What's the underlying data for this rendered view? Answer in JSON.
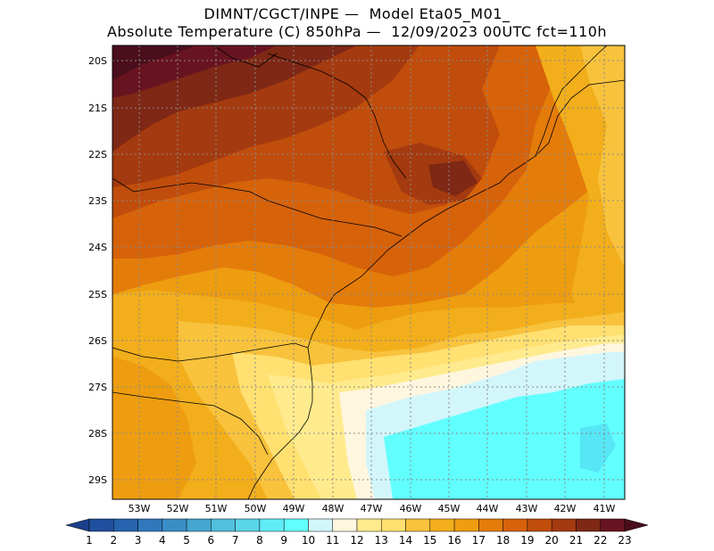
{
  "title_line1": "DIMNT/CGCT/INPE —  Model Eta05_M01_",
  "title_line2": "Absolute Temperature (C) 850hPa —  12/09/2023 00UTC fct=110h",
  "map": {
    "lat_labels": [
      "20S",
      "21S",
      "22S",
      "23S",
      "24S",
      "25S",
      "26S",
      "27S",
      "28S",
      "29S"
    ],
    "lon_labels": [
      "53W",
      "52W",
      "51W",
      "50W",
      "49W",
      "48W",
      "47W",
      "46W",
      "45W",
      "44W",
      "43W",
      "42W",
      "41W"
    ]
  },
  "colorbar": {
    "labels": [
      "1",
      "2",
      "3",
      "4",
      "5",
      "6",
      "7",
      "8",
      "9",
      "10",
      "11",
      "12",
      "13",
      "14",
      "15",
      "16",
      "17",
      "18",
      "19",
      "20",
      "21",
      "22",
      "23"
    ],
    "colors": [
      "#1c3f8c",
      "#1f4f9e",
      "#2662ad",
      "#2f78bb",
      "#3a8ec6",
      "#45a6d1",
      "#50c0dc",
      "#5ad6e8",
      "#60ecf7",
      "#62ffff",
      "#d3f6fb",
      "#fff6df",
      "#ffeb8e",
      "#ffe070",
      "#f8c23c",
      "#f2ae1b",
      "#ee9d10",
      "#e47c0a",
      "#d6620a",
      "#c04d0c",
      "#a43a0f",
      "#7e2815",
      "#681420",
      "#4a0e1c"
    ]
  },
  "colors": {
    "c12": "#fff6df",
    "c11": "#d3f6fb",
    "c10": "#62ffff",
    "c9": "#56f0ff",
    "c13": "#ffeb8e",
    "c14": "#ffe070",
    "c15": "#f8c23c",
    "c16": "#f2ae1b",
    "c17": "#ee9d10",
    "c18": "#e47c0a",
    "c19": "#d6620a",
    "c20": "#c04d0c",
    "c21": "#a43a0f",
    "c22": "#7e2815",
    "c23": "#681420"
  }
}
